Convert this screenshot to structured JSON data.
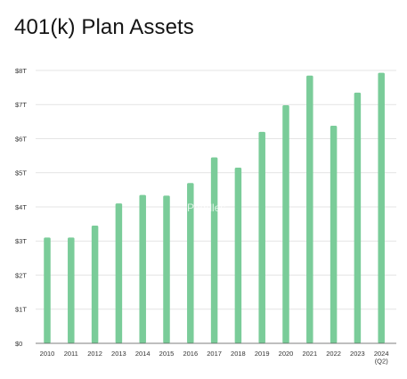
{
  "colors": {
    "bar": "#7acc99",
    "grid": "#dcdcdc",
    "baseline": "#555555",
    "text": "#141414"
  },
  "watermark": "Paddles",
  "chart_data": {
    "type": "bar",
    "title": "401(k) Plan Assets",
    "xlabel": "",
    "ylabel": "",
    "ylim": [
      0,
      8
    ],
    "yticks": [
      0,
      1,
      2,
      3,
      4,
      5,
      6,
      7,
      8
    ],
    "ytick_labels": [
      "$0",
      "$1T",
      "$2T",
      "$3T",
      "$4T",
      "$5T",
      "$6T",
      "$7T",
      "$8T"
    ],
    "grid": true,
    "categories": [
      "2010",
      "2011",
      "2012",
      "2013",
      "2014",
      "2015",
      "2016",
      "2017",
      "2018",
      "2019",
      "2020",
      "2021",
      "2022",
      "2023",
      "2024\n(Q2)"
    ],
    "series": [
      {
        "values": [
          3.1,
          3.1,
          3.45,
          4.1,
          4.35,
          4.33,
          4.7,
          5.45,
          5.15,
          6.2,
          6.98,
          7.85,
          6.38,
          7.35,
          7.93
        ]
      }
    ]
  }
}
